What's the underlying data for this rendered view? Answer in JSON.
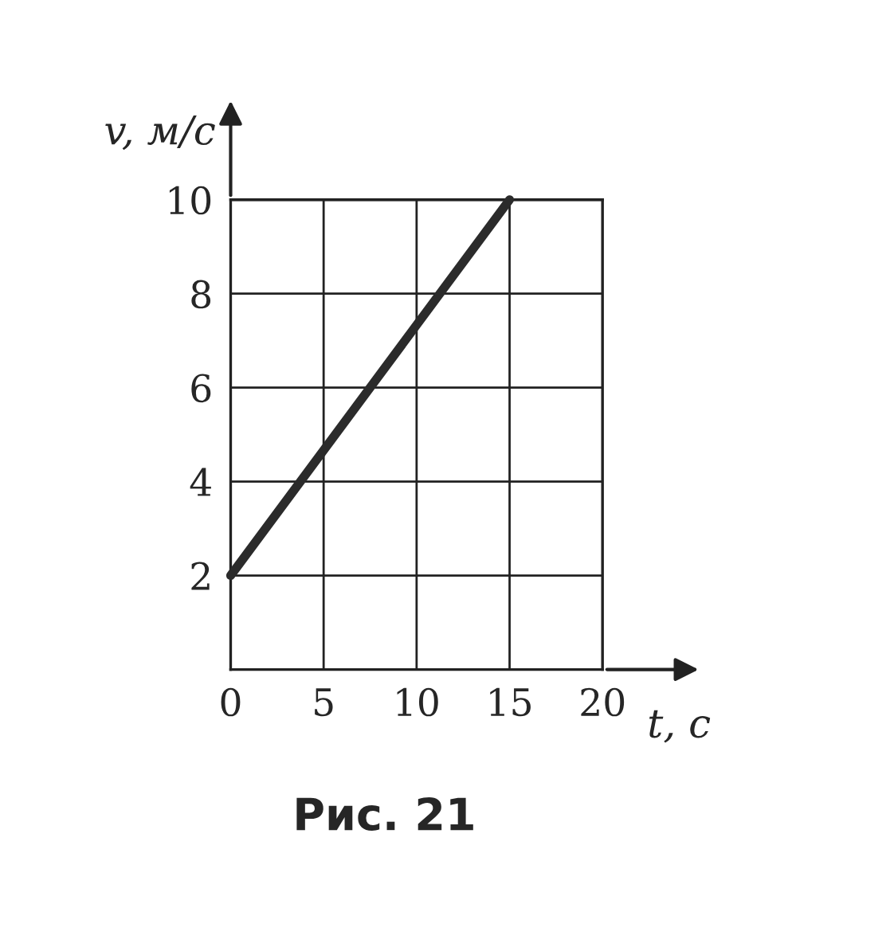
{
  "chart_data": {
    "type": "line",
    "x": [
      0,
      15
    ],
    "series": [
      {
        "color": "#2b2b2b",
        "values": [
          2,
          10
        ]
      }
    ],
    "xlim": [
      0,
      20
    ],
    "ylim": [
      0,
      10
    ],
    "xticks": [
      0,
      5,
      10,
      15,
      20
    ],
    "yticks": [
      {
        "value": 0,
        "label": null
      },
      2,
      4,
      6,
      8,
      10
    ],
    "grid": true,
    "marker": "none",
    "line_style": "solid",
    "xlabel": "t, с",
    "ylabel": "v, м/с",
    "annotations": [
      "Рис. 21"
    ]
  }
}
